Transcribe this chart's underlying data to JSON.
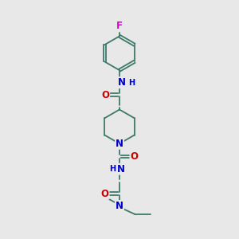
{
  "background_color": "#e8e8e8",
  "bond_color": "#3d7a6a",
  "atom_colors": {
    "F": "#dd00dd",
    "N": "#0000cc",
    "O": "#cc0000",
    "H": "#555555"
  },
  "font_size": 8.5,
  "fig_width": 3.0,
  "fig_height": 3.0,
  "dpi": 100
}
